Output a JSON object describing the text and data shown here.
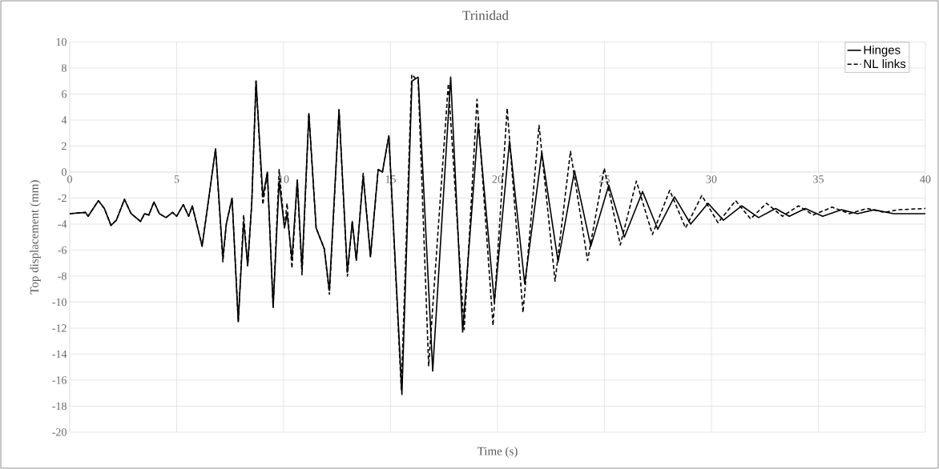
{
  "chart_data": {
    "type": "line",
    "title": "Trinidad",
    "xlabel": "Time (s)",
    "ylabel": "Top displacement (mm)",
    "xlim": [
      0,
      40
    ],
    "xticks": [
      0,
      5,
      10,
      15,
      20,
      25,
      30,
      35,
      40
    ],
    "ylim": [
      -20,
      10
    ],
    "yticks": [
      -20,
      -18,
      -16,
      -14,
      -12,
      -10,
      -8,
      -6,
      -4,
      -2,
      0,
      2,
      4,
      6,
      8,
      10
    ],
    "grid": true,
    "legend": "top right",
    "marker": "none",
    "series": [
      {
        "name": "Hinges",
        "color": "#000000",
        "line_style": "solid",
        "x": [
          0,
          0.74,
          0.86,
          1.34,
          1.62,
          1.93,
          2.18,
          2.56,
          2.87,
          3.31,
          3.5,
          3.7,
          3.94,
          4.19,
          4.5,
          4.81,
          5.0,
          5.31,
          5.56,
          5.73,
          6.19,
          6.82,
          7.16,
          7.32,
          7.59,
          7.88,
          8.13,
          8.32,
          8.51,
          8.71,
          9.03,
          9.24,
          9.51,
          9.79,
          10.04,
          10.16,
          10.39,
          10.64,
          10.86,
          11.18,
          11.52,
          11.9,
          12.14,
          12.59,
          12.98,
          13.21,
          13.4,
          13.72,
          14.06,
          14.42,
          14.62,
          14.92,
          15.53,
          16.0,
          16.29,
          16.97,
          17.81,
          18.37,
          19.1,
          19.85,
          20.56,
          21.27,
          22.07,
          22.83,
          23.6,
          24.36,
          25.2,
          25.93,
          26.78,
          27.49,
          28.27,
          29.03,
          29.84,
          30.56,
          31.42,
          32.2,
          33.0,
          33.64,
          34.39,
          35.2,
          36.08,
          36.83,
          37.6,
          38.52,
          40
        ],
        "values": [
          -3.2,
          -3.1,
          -3.4,
          -2.2,
          -2.8,
          -4.1,
          -3.7,
          -2.1,
          -3.2,
          -3.8,
          -3.2,
          -3.3,
          -2.3,
          -3.2,
          -3.5,
          -3.1,
          -3.4,
          -2.5,
          -3.4,
          -2.6,
          -5.7,
          1.8,
          -6.6,
          -4.0,
          -2.0,
          -11.5,
          -3.8,
          -7.2,
          -2.4,
          7.0,
          -1.9,
          0.0,
          -10.4,
          -0.7,
          -4.3,
          -3.2,
          -6.7,
          -0.6,
          -7.5,
          4.5,
          -4.3,
          -5.9,
          -9.1,
          4.8,
          -7.7,
          -3.8,
          -6.8,
          -0.3,
          -6.5,
          0.2,
          0.0,
          2.8,
          -17.1,
          7.0,
          7.3,
          -15.3,
          7.3,
          -12.3,
          3.7,
          -10.0,
          2.4,
          -8.6,
          1.5,
          -6.9,
          0.1,
          -5.7,
          -1.0,
          -5.0,
          -1.5,
          -4.4,
          -1.9,
          -4.0,
          -2.4,
          -3.7,
          -2.6,
          -3.5,
          -2.8,
          -3.4,
          -2.8,
          -3.4,
          -2.9,
          -3.2,
          -2.9,
          -3.2,
          -3.2
        ]
      },
      {
        "name": "NL links",
        "color": "#000000",
        "line_style": "dashed",
        "x": [
          0,
          0.74,
          0.86,
          1.34,
          1.62,
          1.93,
          2.18,
          2.56,
          2.87,
          3.31,
          3.5,
          3.7,
          3.94,
          4.19,
          4.5,
          4.81,
          5.0,
          5.31,
          5.56,
          5.73,
          6.19,
          6.82,
          7.16,
          7.32,
          7.59,
          7.88,
          8.13,
          8.32,
          8.51,
          8.71,
          9.03,
          9.24,
          9.51,
          9.79,
          10.04,
          10.16,
          10.39,
          10.64,
          10.86,
          11.18,
          11.52,
          11.9,
          12.14,
          12.59,
          12.98,
          13.21,
          13.4,
          13.72,
          14.06,
          14.42,
          14.62,
          14.92,
          15.5,
          15.99,
          16.29,
          16.78,
          17.7,
          18.44,
          19.04,
          19.79,
          20.45,
          21.19,
          21.94,
          22.69,
          23.41,
          24.21,
          24.99,
          25.74,
          26.49,
          27.24,
          28.05,
          28.79,
          29.55,
          30.31,
          31.13,
          31.83,
          32.57,
          33.32,
          34.07,
          34.76,
          35.64,
          36.45,
          37.27,
          38.08,
          38.7,
          40
        ],
        "values": [
          -3.2,
          -3.1,
          -3.4,
          -2.2,
          -2.8,
          -4.1,
          -3.7,
          -2.1,
          -3.2,
          -3.8,
          -3.2,
          -3.3,
          -2.3,
          -3.2,
          -3.5,
          -3.1,
          -3.4,
          -2.5,
          -3.4,
          -2.6,
          -5.7,
          1.8,
          -6.9,
          -4.0,
          -2.0,
          -11.5,
          -3.3,
          -7.2,
          -2.4,
          7.0,
          -2.5,
          0.0,
          -10.4,
          0.2,
          -4.3,
          -2.4,
          -7.4,
          -0.6,
          -7.9,
          4.5,
          -4.3,
          -5.9,
          -9.4,
          4.8,
          -8.0,
          -3.8,
          -6.8,
          -0.1,
          -6.5,
          0.2,
          0.0,
          2.8,
          -16.7,
          7.5,
          7.0,
          -14.9,
          6.8,
          -12.1,
          5.6,
          -11.8,
          4.9,
          -10.8,
          3.6,
          -8.4,
          1.6,
          -6.8,
          0.3,
          -5.6,
          -0.7,
          -4.8,
          -1.4,
          -4.3,
          -1.8,
          -3.9,
          -2.2,
          -3.6,
          -2.4,
          -3.4,
          -2.6,
          -3.3,
          -2.7,
          -3.2,
          -2.8,
          -3.1,
          -2.9,
          -2.8
        ]
      }
    ]
  }
}
